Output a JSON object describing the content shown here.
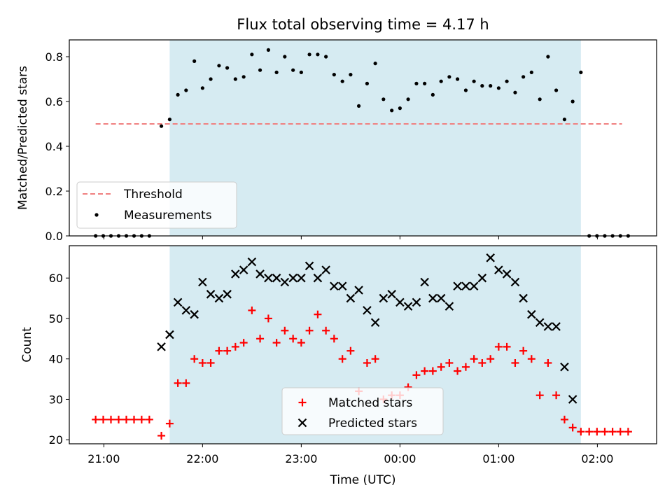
{
  "chart_data": [
    {
      "type": "scatter",
      "title": "Flux total observing time = 4.17 h",
      "xlabel": "",
      "ylabel": "Matched/Predicted stars",
      "ylim": [
        0.0,
        0.875
      ],
      "yticks": [
        "0.0",
        "0.2",
        "0.4",
        "0.6",
        "0.8"
      ],
      "shaded_interval_hours": [
        21.667,
        25.833
      ],
      "threshold": {
        "name": "Threshold",
        "value": 0.5,
        "x_range_hours": [
          20.917,
          26.25
        ],
        "color": "#f08080"
      },
      "measurements": {
        "name": "Measurements",
        "x_hours": [
          20.917,
          20.994,
          21.072,
          21.15,
          21.228,
          21.306,
          21.383,
          21.461,
          21.583,
          21.667,
          21.75,
          21.833,
          21.917,
          22.0,
          22.083,
          22.167,
          22.25,
          22.333,
          22.417,
          22.5,
          22.583,
          22.667,
          22.75,
          22.833,
          22.917,
          23.0,
          23.083,
          23.167,
          23.25,
          23.333,
          23.417,
          23.5,
          23.583,
          23.667,
          23.75,
          23.833,
          23.917,
          24.0,
          24.083,
          24.167,
          24.25,
          24.333,
          24.417,
          24.5,
          24.583,
          24.667,
          24.75,
          24.833,
          24.917,
          25.0,
          25.083,
          25.167,
          25.25,
          25.333,
          25.417,
          25.5,
          25.583,
          25.667,
          25.75,
          25.833,
          25.917,
          25.996,
          26.075,
          26.154,
          26.233,
          26.312
        ],
        "y": [
          0.0,
          0.0,
          0.0,
          0.0,
          0.0,
          0.0,
          0.0,
          0.0,
          0.49,
          0.52,
          0.63,
          0.65,
          0.78,
          0.66,
          0.7,
          0.76,
          0.75,
          0.7,
          0.71,
          0.81,
          0.74,
          0.83,
          0.73,
          0.8,
          0.74,
          0.73,
          0.81,
          0.81,
          0.8,
          0.72,
          0.69,
          0.72,
          0.58,
          0.68,
          0.77,
          0.61,
          0.56,
          0.57,
          0.61,
          0.68,
          0.68,
          0.63,
          0.69,
          0.71,
          0.7,
          0.65,
          0.69,
          0.67,
          0.67,
          0.66,
          0.69,
          0.64,
          0.71,
          0.73,
          0.61,
          0.8,
          0.65,
          0.52,
          0.6,
          0.73,
          0.0,
          0.0,
          0.0,
          0.0,
          0.0,
          0.0
        ],
        "color": "#000000"
      },
      "legend": {
        "placement": "lower-left",
        "entries": [
          "Threshold",
          "Measurements"
        ]
      }
    },
    {
      "type": "scatter",
      "title": "",
      "xlabel": "Time (UTC)",
      "ylabel": "Count",
      "ylim": [
        19,
        68
      ],
      "yticks": [
        "20",
        "30",
        "40",
        "50",
        "60"
      ],
      "xlim_hours": [
        20.65,
        26.6
      ],
      "xticks": {
        "values_hours": [
          21,
          22,
          23,
          24,
          25,
          26
        ],
        "labels": [
          "21:00",
          "22:00",
          "23:00",
          "00:00",
          "01:00",
          "02:00"
        ]
      },
      "shaded_interval_hours": [
        21.667,
        25.833
      ],
      "x_hours": [
        20.917,
        20.994,
        21.072,
        21.15,
        21.228,
        21.306,
        21.383,
        21.461,
        21.583,
        21.667,
        21.75,
        21.833,
        21.917,
        22.0,
        22.083,
        22.167,
        22.25,
        22.333,
        22.417,
        22.5,
        22.583,
        22.667,
        22.75,
        22.833,
        22.917,
        23.0,
        23.083,
        23.167,
        23.25,
        23.333,
        23.417,
        23.5,
        23.583,
        23.667,
        23.75,
        23.833,
        23.917,
        24.0,
        24.083,
        24.167,
        24.25,
        24.333,
        24.417,
        24.5,
        24.583,
        24.667,
        24.75,
        24.833,
        24.917,
        25.0,
        25.083,
        25.167,
        25.25,
        25.333,
        25.417,
        25.5,
        25.583,
        25.667,
        25.75,
        25.833,
        25.917,
        25.996,
        26.075,
        26.154,
        26.233,
        26.312
      ],
      "series": [
        {
          "name": "Matched stars",
          "marker": "plus",
          "color": "#ff0000",
          "values": [
            25,
            25,
            25,
            25,
            25,
            25,
            25,
            25,
            21,
            24,
            34,
            34,
            40,
            39,
            39,
            42,
            42,
            43,
            44,
            52,
            45,
            50,
            44,
            47,
            45,
            44,
            47,
            51,
            47,
            45,
            40,
            42,
            32,
            39,
            40,
            30,
            31,
            31,
            33,
            36,
            37,
            37,
            38,
            39,
            37,
            38,
            40,
            39,
            40,
            43,
            43,
            39,
            42,
            40,
            31,
            39,
            31,
            25,
            23,
            22,
            22,
            22,
            22,
            22,
            22,
            22
          ]
        },
        {
          "name": "Predicted stars",
          "marker": "x",
          "color": "#000000",
          "values": [
            null,
            null,
            null,
            null,
            null,
            null,
            null,
            null,
            43,
            46,
            54,
            52,
            51,
            59,
            56,
            55,
            56,
            61,
            62,
            64,
            61,
            60,
            60,
            59,
            60,
            60,
            63,
            60,
            62,
            58,
            58,
            55,
            57,
            52,
            49,
            55,
            56,
            54,
            53,
            54,
            59,
            55,
            55,
            53,
            58,
            58,
            58,
            60,
            65,
            62,
            61,
            59,
            55,
            51,
            49,
            48,
            48,
            38,
            30,
            null,
            null,
            null,
            null,
            null,
            null,
            null
          ]
        }
      ],
      "legend": {
        "placement": "lower-center",
        "entries": [
          "Matched stars",
          "Predicted stars"
        ]
      }
    }
  ],
  "colors": {
    "shade": "#add8e6",
    "shade_alpha": 0.5
  }
}
